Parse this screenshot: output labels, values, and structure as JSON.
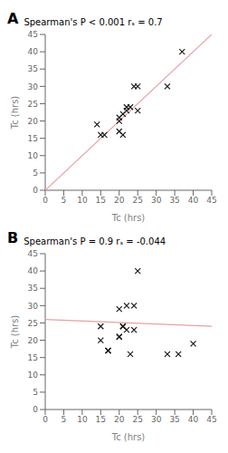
{
  "chart_data": [
    {
      "type": "scatter",
      "title": "Spearman's P < 0.001 rₛ = 0.7",
      "annotations": [
        "A"
      ],
      "xlabel": "Tc  (hrs)",
      "ylabel": "Tc (hrs)",
      "xlim": [
        0,
        45
      ],
      "ylim": [
        0,
        45
      ],
      "xticks": [
        0,
        5,
        10,
        15,
        20,
        25,
        30,
        35,
        40,
        45
      ],
      "yticks": [
        0,
        5,
        10,
        15,
        20,
        25,
        30,
        35,
        40,
        45
      ],
      "grid": false,
      "series": [
        {
          "type": "line",
          "line_style": "solid",
          "color": "#e8a0a0",
          "x": [
            0,
            45
          ],
          "values": [
            0,
            45
          ]
        },
        {
          "type": "scatter",
          "marker": "x",
          "color": "#1a1a1a",
          "x": [
            14,
            15,
            16,
            20,
            20,
            20,
            21,
            21,
            22,
            22,
            23,
            24,
            25,
            25,
            33,
            37
          ],
          "values": [
            19,
            16,
            16,
            17,
            20,
            21,
            16,
            22,
            23,
            24,
            24,
            30,
            23,
            30,
            30,
            40
          ]
        }
      ]
    },
    {
      "type": "scatter",
      "title": "Spearman's P = 0.9 rₛ = -0.044",
      "annotations": [
        "B"
      ],
      "xlabel": "Tc (hrs)",
      "ylabel": "Tc (hrs)",
      "xlim": [
        0,
        45
      ],
      "ylim": [
        0,
        45
      ],
      "xticks": [
        0,
        5,
        10,
        15,
        20,
        25,
        30,
        35,
        40,
        45
      ],
      "yticks": [
        0,
        5,
        10,
        15,
        20,
        25,
        30,
        35,
        40,
        45
      ],
      "grid": false,
      "series": [
        {
          "type": "line",
          "line_style": "solid",
          "color": "#e8a0a0",
          "x": [
            0,
            45
          ],
          "values": [
            26,
            24.02
          ]
        },
        {
          "type": "scatter",
          "marker": "x",
          "color": "#1a1a1a",
          "x": [
            15,
            15,
            17,
            17,
            20,
            20,
            20,
            21,
            21,
            22,
            22,
            23,
            24,
            24,
            25,
            33,
            36,
            40
          ],
          "values": [
            20,
            24,
            17,
            17,
            21,
            21,
            29,
            24,
            24,
            23,
            30,
            16,
            23,
            30,
            40,
            16,
            16,
            19
          ]
        }
      ]
    }
  ]
}
